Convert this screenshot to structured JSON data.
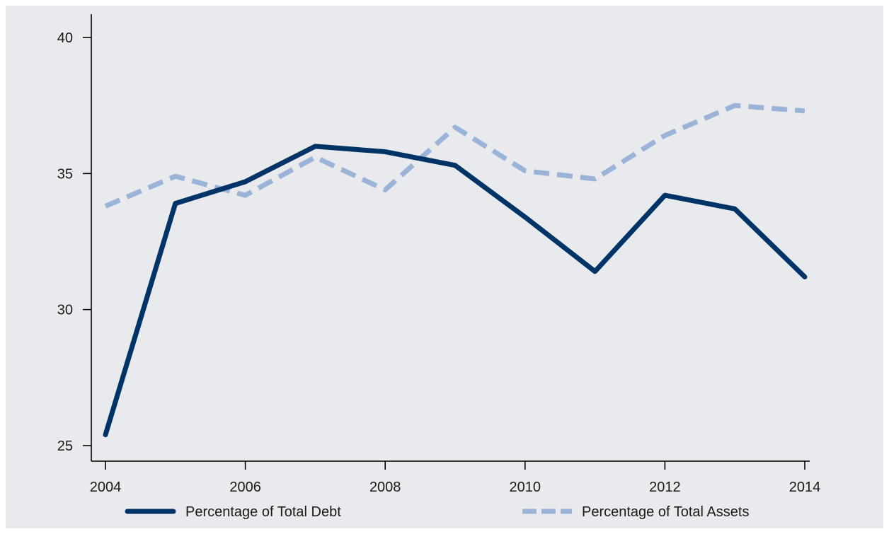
{
  "chart_data": {
    "type": "line",
    "x": [
      2004,
      2005,
      2006,
      2007,
      2008,
      2009,
      2010,
      2011,
      2012,
      2013,
      2014
    ],
    "xticks": [
      2004,
      2006,
      2008,
      2010,
      2012,
      2014
    ],
    "yticks": [
      25,
      30,
      35,
      40
    ],
    "xlim": [
      2003.9,
      2015.1
    ],
    "ylim": [
      24.6,
      40.8
    ],
    "grid": false,
    "legend_position": "bottom",
    "series": [
      {
        "name": "Percentage of Total Debt",
        "values": [
          25.4,
          33.9,
          34.7,
          36.0,
          35.8,
          35.3,
          33.4,
          31.4,
          34.2,
          33.7,
          31.2
        ],
        "color": "#003366",
        "style": "solid"
      },
      {
        "name": "Percentage of Total Assets",
        "values": [
          33.8,
          34.9,
          34.2,
          35.6,
          34.4,
          36.7,
          35.1,
          34.8,
          36.4,
          37.5,
          37.3
        ],
        "color": "#9bb3d6",
        "style": "dashed"
      }
    ],
    "background_color": "#e8eaed",
    "axis_color": "#000000"
  }
}
